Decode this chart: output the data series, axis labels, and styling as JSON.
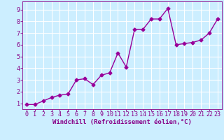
{
  "x": [
    0,
    1,
    2,
    3,
    4,
    5,
    6,
    7,
    8,
    9,
    10,
    11,
    12,
    13,
    14,
    15,
    16,
    17,
    18,
    19,
    20,
    21,
    22,
    23
  ],
  "y": [
    0.9,
    0.9,
    1.2,
    1.5,
    1.7,
    1.8,
    3.0,
    3.1,
    2.6,
    3.4,
    3.6,
    5.3,
    4.1,
    7.3,
    7.3,
    8.2,
    8.2,
    9.1,
    6.0,
    6.1,
    6.2,
    6.4,
    7.0,
    8.2
  ],
  "line_color": "#990099",
  "marker": "D",
  "markersize": 2.5,
  "linewidth": 1.0,
  "bg_color": "#cceeff",
  "grid_color": "#ffffff",
  "xlabel": "Windchill (Refroidissement éolien,°C)",
  "xlabel_color": "#880088",
  "xlabel_fontsize": 6.5,
  "tick_color": "#880088",
  "tick_fontsize": 6,
  "xlim": [
    -0.5,
    23.5
  ],
  "ylim": [
    0.5,
    9.7
  ],
  "yticks": [
    1,
    2,
    3,
    4,
    5,
    6,
    7,
    8,
    9
  ],
  "xticks": [
    0,
    1,
    2,
    3,
    4,
    5,
    6,
    7,
    8,
    9,
    10,
    11,
    12,
    13,
    14,
    15,
    16,
    17,
    18,
    19,
    20,
    21,
    22,
    23
  ]
}
